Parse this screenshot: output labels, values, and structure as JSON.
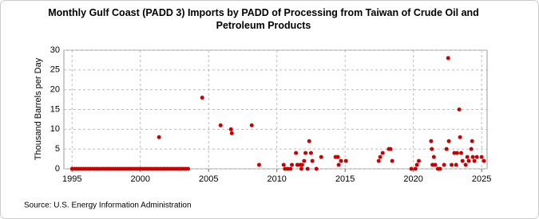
{
  "chart_data": {
    "type": "scatter",
    "title": "Monthly Gulf Coast (PADD 3) Imports by PADD of Processing from Taiwan of Crude Oil and Petroleum Products",
    "y_label": "Thousand Barrels per Day",
    "source": "Source: U.S. Energy Information Administration",
    "color": "#cc0000",
    "grid": true,
    "xlim": [
      1994.4,
      2025.4
    ],
    "xticks": [
      1995,
      2000,
      2005,
      2010,
      2015,
      2020,
      2025
    ],
    "ylim": [
      0,
      30
    ],
    "yticks": [
      0,
      5,
      10,
      15,
      20,
      25,
      30
    ],
    "x": [
      1995,
      1995.17,
      1995.33,
      1995.5,
      1995.67,
      1995.83,
      1996,
      1996.17,
      1996.33,
      1996.5,
      1996.67,
      1996.83,
      1997,
      1997.17,
      1997.33,
      1997.5,
      1997.67,
      1997.83,
      1998,
      1998.17,
      1998.33,
      1998.5,
      1998.67,
      1998.83,
      1999,
      1999.17,
      1999.33,
      1999.5,
      1999.67,
      1999.83,
      2000,
      2000.17,
      2000.33,
      2000.5,
      2000.67,
      2000.83,
      2001,
      2001.17,
      2001.33,
      2001.37,
      2001.5,
      2001.67,
      2001.83,
      2002,
      2002.17,
      2002.33,
      2002.5,
      2002.67,
      2002.83,
      2003,
      2003.17,
      2003.33,
      2003.5,
      2004.53,
      2005.88,
      2006.64,
      2006.7,
      2008.16,
      2008.7,
      2010.5,
      2010.6,
      2010.8,
      2011,
      2011.1,
      2011.4,
      2011.5,
      2011.7,
      2011.8,
      2011.85,
      2012,
      2012.1,
      2012.25,
      2012.37,
      2012.5,
      2012.6,
      2012.9,
      2013.25,
      2014.3,
      2014.47,
      2014.53,
      2014.7,
      2015.06,
      2017.46,
      2017.57,
      2017.75,
      2018.2,
      2018.33,
      2018.45,
      2019.85,
      2020.15,
      2020.26,
      2020.4,
      2021.3,
      2021.35,
      2021.4,
      2021.5,
      2021.6,
      2021.8,
      2021.95,
      2022.25,
      2022.43,
      2022.55,
      2022.6,
      2022.8,
      2023,
      2023.13,
      2023.2,
      2023.36,
      2023.42,
      2023.5,
      2023.6,
      2023.83,
      2023.95,
      2024.06,
      2024.24,
      2024.3,
      2024.35,
      2024.47,
      2024.65,
      2025,
      2025.17
    ],
    "values": [
      0,
      0,
      0,
      0,
      0,
      0,
      0,
      0,
      0,
      0,
      0,
      0,
      0,
      0,
      0,
      0,
      0,
      0,
      0,
      0,
      0,
      0,
      0,
      0,
      0,
      0,
      0,
      0,
      0,
      0,
      0,
      0,
      0,
      0,
      0,
      0,
      0,
      0,
      0,
      8,
      0,
      0,
      0,
      0,
      0,
      0,
      0,
      0,
      0,
      0,
      0,
      0,
      0,
      18,
      11,
      10,
      9,
      11,
      1,
      1,
      0,
      0,
      0,
      1,
      4,
      1,
      1,
      0,
      1,
      2,
      4,
      0,
      7,
      4,
      2,
      0,
      3,
      3,
      3,
      1,
      2,
      2,
      2,
      3,
      4,
      5,
      5,
      2,
      0,
      0,
      1,
      2,
      7,
      5,
      1,
      3,
      1,
      0,
      0,
      1,
      5,
      28,
      7,
      1,
      4,
      1,
      4,
      15,
      8,
      4,
      2,
      1,
      3,
      2,
      5,
      7,
      3,
      2,
      3,
      3,
      2
    ]
  }
}
